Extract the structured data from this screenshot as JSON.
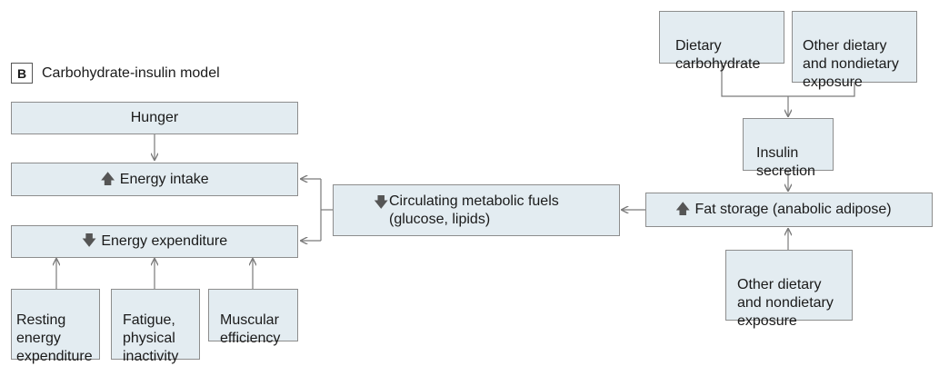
{
  "panel": {
    "letter": "B",
    "title": "Carbohydrate-insulin model"
  },
  "nodes": {
    "hunger": {
      "label": "Hunger"
    },
    "energy_intake": {
      "label": "Energy intake",
      "direction": "up"
    },
    "energy_expenditure": {
      "label": "Energy expenditure",
      "direction": "down"
    },
    "resting": {
      "label": "Resting\nenergy\nexpenditure"
    },
    "fatigue": {
      "label": "Fatigue,\nphysical\ninactivity"
    },
    "muscular": {
      "label": "Muscular\nefficiency"
    },
    "circulating": {
      "label": "Circulating metabolic fuels\n(glucose, lipids)",
      "direction": "down"
    },
    "fat_storage": {
      "label": "Fat storage (anabolic adipose)",
      "direction": "up"
    },
    "dietary_carb": {
      "label": "Dietary\ncarbohydrate"
    },
    "other_top": {
      "label": "Other dietary\nand nondietary\nexposure"
    },
    "insulin": {
      "label": "Insulin\nsecretion"
    },
    "other_bottom": {
      "label": "Other dietary\nand nondietary\nexposure"
    }
  },
  "colors": {
    "box_fill": "#e3ecf1",
    "box_border": "#8d8d8d",
    "connector": "#7a7a7a"
  },
  "glyphs": {
    "up": "🡅",
    "down": "🡇"
  }
}
